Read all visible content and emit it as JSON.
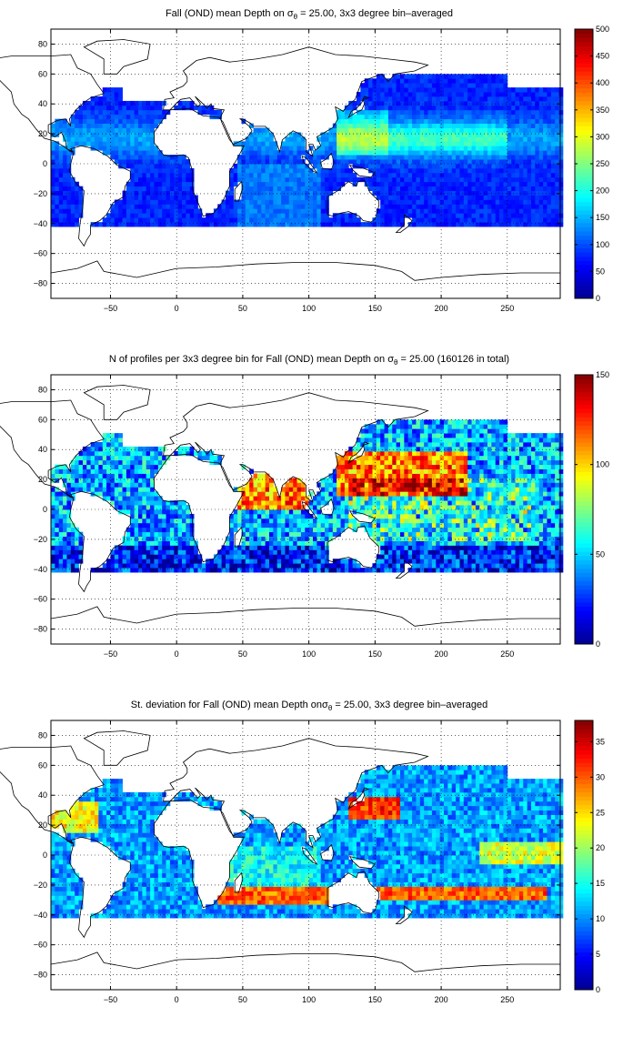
{
  "colorscale": {
    "name": "jet",
    "stops": [
      "#00008f",
      "#0000ff",
      "#0080ff",
      "#00ffff",
      "#80ff80",
      "#ffff00",
      "#ff8000",
      "#ff0000",
      "#800000"
    ]
  },
  "chart_data": [
    {
      "type": "heatmap",
      "title": {
        "pre": "Fall (OND) mean Depth on σ",
        "sub": "θ",
        "post": " = 25.00, 3x3 degree bin–averaged"
      },
      "xlim": [
        -95,
        290
      ],
      "ylim": [
        -90,
        90
      ],
      "xticks": [
        -50,
        0,
        50,
        100,
        150,
        200,
        250
      ],
      "yticks": [
        -80,
        -60,
        -40,
        -20,
        0,
        20,
        40,
        60,
        80
      ],
      "grid": true,
      "colorbar": {
        "min": 0,
        "max": 500,
        "ticks": [
          0,
          50,
          100,
          150,
          200,
          250,
          300,
          350,
          400,
          450,
          500
        ]
      }
    },
    {
      "type": "heatmap",
      "title": {
        "pre": "N of profiles per 3x3 degree bin for Fall (OND) mean Depth on σ",
        "sub": "θ",
        "post": " = 25.00 (160126 in total)"
      },
      "xlim": [
        -95,
        290
      ],
      "ylim": [
        -90,
        90
      ],
      "xticks": [
        -50,
        0,
        50,
        100,
        150,
        200,
        250
      ],
      "yticks": [
        -80,
        -60,
        -40,
        -20,
        0,
        20,
        40,
        60,
        80
      ],
      "grid": true,
      "colorbar": {
        "min": 0,
        "max": 150,
        "ticks": [
          0,
          50,
          100,
          150
        ]
      }
    },
    {
      "type": "heatmap",
      "title": {
        "pre": "St. deviation for Fall (OND) mean Depth onσ",
        "sub": "θ",
        "post": " = 25.00, 3x3 degree bin–averaged"
      },
      "xlim": [
        -95,
        290
      ],
      "ylim": [
        -90,
        90
      ],
      "xticks": [
        -50,
        0,
        50,
        100,
        150,
        200,
        250
      ],
      "yticks": [
        -80,
        -60,
        -40,
        -20,
        0,
        20,
        40,
        60,
        80
      ],
      "grid": true,
      "colorbar": {
        "min": 0,
        "max": 38,
        "ticks": [
          0,
          5,
          10,
          15,
          20,
          25,
          30,
          35
        ]
      }
    }
  ]
}
